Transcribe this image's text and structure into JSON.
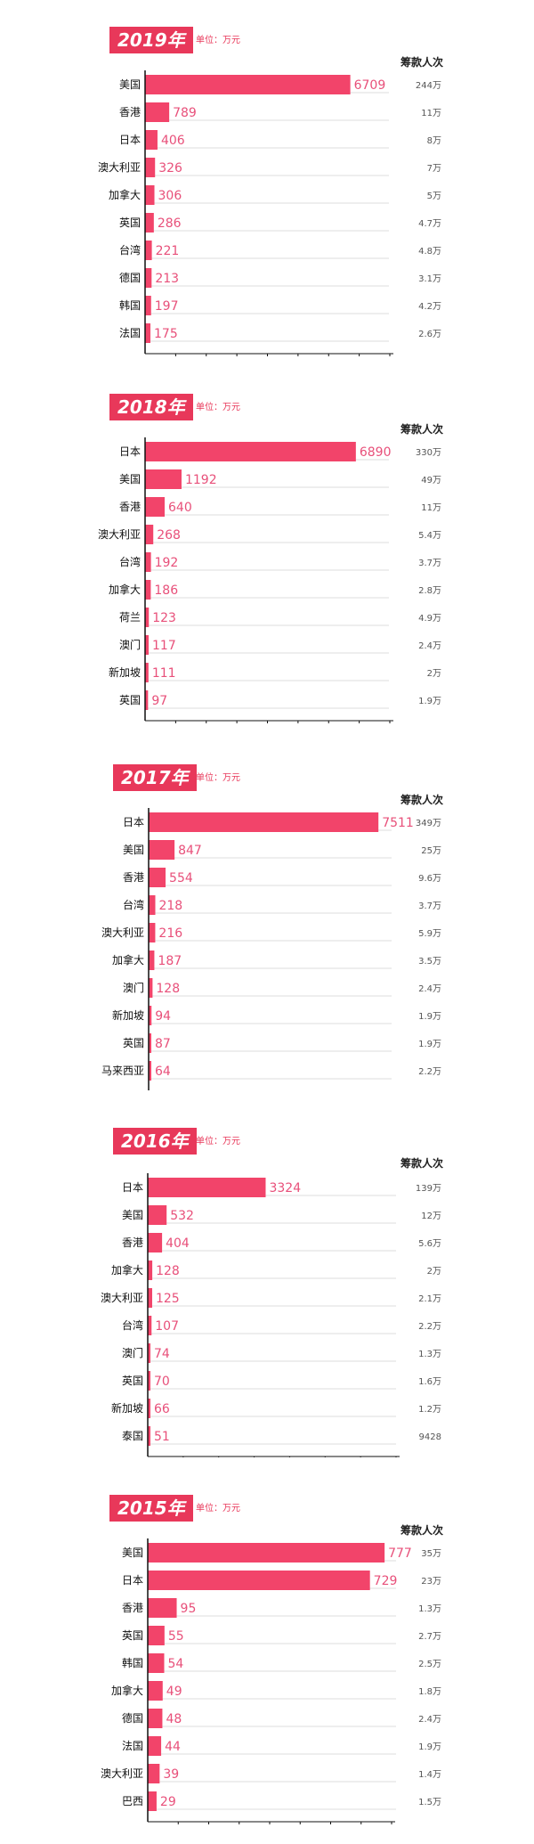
{
  "chart_data": [
    {
      "type": "bar",
      "title": "2019年",
      "unit_label": "单位：万元",
      "count_header": "筹款人次",
      "categories": [
        "美国",
        "香港",
        "日本",
        "澳大利亚",
        "加拿大",
        "英国",
        "台湾",
        "德国",
        "韩国",
        "法国"
      ],
      "values": [
        6709,
        789,
        406,
        326,
        306,
        286,
        221,
        213,
        197,
        175
      ],
      "counts": [
        "244万",
        "11万",
        "8万",
        "7万",
        "5万",
        "4.7万",
        "4.8万",
        "3.1万",
        "4.2万",
        "2.6万"
      ],
      "xlim": [
        0,
        8000
      ],
      "xticks": [
        1000,
        2000,
        3000,
        4000,
        5000,
        6000,
        7000,
        8000
      ],
      "xlabel": "",
      "ylabel": "",
      "grid": true
    },
    {
      "type": "bar",
      "title": "2018年",
      "unit_label": "单位：万元",
      "count_header": "筹款人次",
      "categories": [
        "日本",
        "美国",
        "香港",
        "澳大利亚",
        "台湾",
        "加拿大",
        "荷兰",
        "澳门",
        "新加坡",
        "英国"
      ],
      "values": [
        6890,
        1192,
        640,
        268,
        192,
        186,
        123,
        117,
        111,
        97
      ],
      "counts": [
        "330万",
        "49万",
        "11万",
        "5.4万",
        "3.7万",
        "2.8万",
        "4.9万",
        "2.4万",
        "2万",
        "1.9万"
      ],
      "xlim": [
        0,
        8000
      ],
      "xticks": [
        1000,
        2000,
        3000,
        4000,
        5000,
        6000,
        7000,
        8000
      ],
      "xlabel": "",
      "ylabel": "",
      "grid": true
    },
    {
      "type": "bar",
      "title": "2017年",
      "unit_label": "单位：万元",
      "count_header": "筹款人次",
      "categories": [
        "日本",
        "美国",
        "香港",
        "台湾",
        "澳大利亚",
        "加拿大",
        "澳门",
        "新加坡",
        "英国",
        "马来西亚"
      ],
      "values": [
        7511,
        847,
        554,
        218,
        216,
        187,
        128,
        94,
        87,
        64
      ],
      "counts": [
        "349万",
        "25万",
        "9.6万",
        "3.7万",
        "5.9万",
        "3.5万",
        "2.4万",
        "1.9万",
        "1.9万",
        "2.2万"
      ],
      "xlim": [
        0,
        8000
      ],
      "xticks": [
        1000,
        2000,
        3000,
        4000,
        5000,
        6000,
        7000,
        8000
      ],
      "xlabel": "",
      "ylabel": "",
      "grid": true
    },
    {
      "type": "bar",
      "title": "2016年",
      "unit_label": "单位：万元",
      "count_header": "筹款人次",
      "categories": [
        "日本",
        "美国",
        "香港",
        "加拿大",
        "澳大利亚",
        "台湾",
        "澳门",
        "英国",
        "新加坡",
        "泰国"
      ],
      "values": [
        3324,
        532,
        404,
        128,
        125,
        107,
        74,
        70,
        66,
        51
      ],
      "counts": [
        "139万",
        "12万",
        "5.6万",
        "2万",
        "2.1万",
        "2.2万",
        "1.3万",
        "1.6万",
        "1.2万",
        "9428"
      ],
      "xlim": [
        0,
        7000
      ],
      "xticks": [
        1000,
        2000,
        3000,
        4000,
        5000,
        6000,
        7000
      ],
      "xlabel": "",
      "ylabel": "",
      "grid": true
    },
    {
      "type": "bar",
      "title": "2015年",
      "unit_label": "单位：万元",
      "count_header": "筹款人次",
      "categories": [
        "美国",
        "日本",
        "香港",
        "英国",
        "韩国",
        "加拿大",
        "德国",
        "法国",
        "澳大利亚",
        "巴西"
      ],
      "values": [
        777,
        729,
        95,
        55,
        54,
        49,
        48,
        44,
        39,
        29
      ],
      "counts": [
        "35万",
        "23万",
        "1.3万",
        "2.7万",
        "2.5万",
        "1.8万",
        "2.4万",
        "1.9万",
        "1.4万",
        "1.5万"
      ],
      "xlim": [
        0,
        800
      ],
      "xticks": [
        100,
        200,
        300,
        400,
        500,
        600,
        700,
        800
      ],
      "xlabel": "",
      "ylabel": "",
      "grid": true,
      "min_bar_visible": 60
    }
  ],
  "colors": {
    "bar": "#f2446a",
    "badge": "#e8385a",
    "value_label": "#e8507a",
    "grid": "#dddddd"
  }
}
